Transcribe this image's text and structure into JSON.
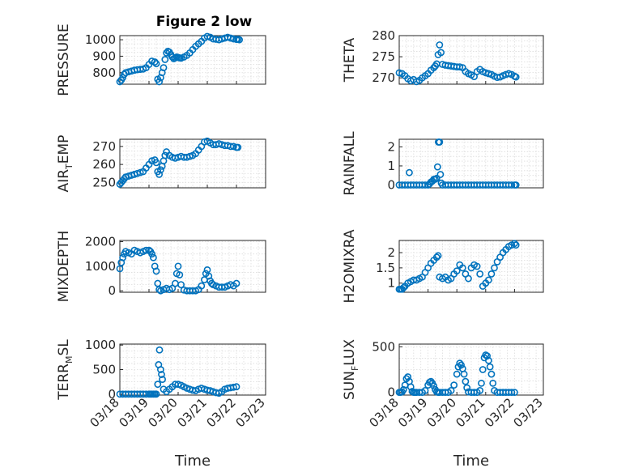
{
  "figure_title": "Figure 2 low",
  "colors": {
    "marker": "#0072BD",
    "axis": "#262626",
    "background": "#ffffff"
  },
  "chart_data": [
    {
      "type": "scatter",
      "ylabel": "PRESSURE",
      "ylim": [
        730,
        1025
      ],
      "yticks": [
        800,
        900,
        1000
      ],
      "xlim": [
        0,
        5
      ],
      "grid": true,
      "x": [
        0,
        0.05,
        0.1,
        0.15,
        0.2,
        0.3,
        0.4,
        0.5,
        0.6,
        0.7,
        0.8,
        0.9,
        1.0,
        1.1,
        1.2,
        1.25,
        1.3,
        1.35,
        1.4,
        1.45,
        1.5,
        1.55,
        1.6,
        1.65,
        1.7,
        1.75,
        1.8,
        1.85,
        1.9,
        1.95,
        2.0,
        2.05,
        2.1,
        2.2,
        2.3,
        2.4,
        2.5,
        2.6,
        2.7,
        2.8,
        2.9,
        3.0,
        3.1,
        3.2,
        3.3,
        3.4,
        3.5,
        3.6,
        3.7,
        3.8,
        3.9,
        4.0,
        4.05,
        4.1
      ],
      "y": [
        745,
        755,
        770,
        790,
        800,
        805,
        810,
        815,
        818,
        820,
        822,
        830,
        850,
        870,
        865,
        855,
        760,
        745,
        770,
        800,
        830,
        880,
        920,
        930,
        925,
        910,
        895,
        885,
        890,
        895,
        893,
        890,
        888,
        895,
        905,
        920,
        940,
        960,
        975,
        990,
        1010,
        1020,
        1015,
        1005,
        1003,
        1000,
        1005,
        1010,
        1015,
        1010,
        1005,
        1002,
        1003,
        1000
      ]
    },
    {
      "type": "scatter",
      "ylabel": "THETA",
      "ylim": [
        268.5,
        280
      ],
      "yticks": [
        270,
        275,
        280
      ],
      "xlim": [
        0,
        5
      ],
      "grid": true,
      "x": [
        0,
        0.1,
        0.2,
        0.3,
        0.4,
        0.5,
        0.6,
        0.7,
        0.8,
        0.9,
        1.0,
        1.1,
        1.2,
        1.25,
        1.3,
        1.35,
        1.4,
        1.45,
        1.5,
        1.6,
        1.7,
        1.8,
        1.9,
        2.0,
        2.1,
        2.2,
        2.3,
        2.4,
        2.5,
        2.6,
        2.7,
        2.8,
        2.9,
        3.0,
        3.1,
        3.2,
        3.3,
        3.4,
        3.5,
        3.6,
        3.7,
        3.8,
        3.9,
        4.0,
        4.05
      ],
      "y": [
        271.2,
        271.0,
        270.5,
        269.8,
        269.3,
        269.6,
        269.1,
        269.4,
        270.0,
        270.5,
        271.0,
        271.8,
        272.4,
        272.8,
        273.3,
        275.5,
        277.8,
        276.0,
        273.2,
        273.0,
        272.9,
        272.8,
        272.7,
        272.6,
        272.6,
        272.4,
        271.5,
        271.0,
        270.7,
        270.3,
        271.5,
        272.0,
        271.5,
        271.2,
        271.0,
        270.8,
        270.4,
        270.1,
        270.2,
        270.5,
        270.8,
        271.0,
        270.8,
        270.4,
        270.2
      ]
    },
    {
      "type": "scatter",
      "ylabel": "AIR_TEMP",
      "ylim": [
        247,
        274
      ],
      "yticks": [
        250,
        260,
        270
      ],
      "xlim": [
        0,
        5
      ],
      "grid": true,
      "x": [
        0,
        0.05,
        0.1,
        0.15,
        0.2,
        0.3,
        0.4,
        0.5,
        0.6,
        0.7,
        0.8,
        0.9,
        1.0,
        1.1,
        1.2,
        1.25,
        1.3,
        1.35,
        1.4,
        1.45,
        1.5,
        1.55,
        1.6,
        1.7,
        1.8,
        1.9,
        2.0,
        2.1,
        2.2,
        2.3,
        2.4,
        2.5,
        2.6,
        2.7,
        2.8,
        2.9,
        3.0,
        3.1,
        3.2,
        3.3,
        3.4,
        3.5,
        3.6,
        3.7,
        3.8,
        3.9,
        4.0,
        4.05
      ],
      "y": [
        249,
        250,
        251,
        252,
        253,
        253.5,
        254,
        254.5,
        255,
        255.5,
        256,
        258,
        260,
        262,
        262.5,
        261,
        256,
        254.5,
        257,
        259,
        262,
        265,
        267,
        265,
        264,
        263.5,
        264,
        264.5,
        264,
        264,
        264.5,
        265,
        266,
        268,
        270,
        272.5,
        273,
        272,
        271,
        271,
        271.5,
        271,
        270.5,
        270.5,
        270,
        270,
        269.5,
        269.5
      ]
    },
    {
      "type": "scatter",
      "ylabel": "RAINFALL",
      "ylim": [
        -0.15,
        2.4
      ],
      "yticks": [
        0,
        1,
        2
      ],
      "xlim": [
        0,
        5
      ],
      "grid": true,
      "x": [
        0,
        0.1,
        0.2,
        0.3,
        0.35,
        0.4,
        0.5,
        0.6,
        0.7,
        0.8,
        0.9,
        1.0,
        1.05,
        1.1,
        1.15,
        1.2,
        1.25,
        1.3,
        1.33,
        1.36,
        1.4,
        1.43,
        1.46,
        1.5,
        1.6,
        1.7,
        1.8,
        1.9,
        2.0,
        2.1,
        2.2,
        2.3,
        2.4,
        2.5,
        2.6,
        2.7,
        2.8,
        2.9,
        3.0,
        3.1,
        3.2,
        3.3,
        3.4,
        3.5,
        3.6,
        3.7,
        3.8,
        3.9,
        4.0,
        4.05
      ],
      "y": [
        0,
        0,
        0,
        0,
        0.65,
        0,
        0,
        0,
        0,
        0,
        0,
        0,
        0.05,
        0.15,
        0.2,
        0.3,
        0.3,
        0.35,
        0.95,
        2.25,
        2.25,
        0.55,
        0.1,
        0,
        0,
        0,
        0,
        0,
        0,
        0,
        0,
        0,
        0,
        0,
        0,
        0,
        0,
        0,
        0,
        0,
        0,
        0,
        0,
        0,
        0,
        0,
        0,
        0,
        0,
        0
      ]
    },
    {
      "type": "scatter",
      "ylabel": "MIXDEPTH",
      "ylim": [
        -60,
        2050
      ],
      "yticks": [
        0,
        1000,
        2000
      ],
      "xlim": [
        0,
        5
      ],
      "grid": true,
      "x": [
        0,
        0.05,
        0.1,
        0.15,
        0.2,
        0.3,
        0.4,
        0.5,
        0.6,
        0.7,
        0.8,
        0.9,
        1.0,
        1.05,
        1.1,
        1.15,
        1.2,
        1.25,
        1.3,
        1.35,
        1.4,
        1.5,
        1.6,
        1.7,
        1.8,
        1.9,
        1.95,
        2.0,
        2.05,
        2.1,
        2.2,
        2.3,
        2.4,
        2.5,
        2.6,
        2.7,
        2.8,
        2.9,
        2.95,
        3.0,
        3.05,
        3.1,
        3.15,
        3.2,
        3.3,
        3.4,
        3.5,
        3.6,
        3.7,
        3.8,
        3.9,
        4.0
      ],
      "y": [
        900,
        1150,
        1350,
        1500,
        1600,
        1550,
        1500,
        1650,
        1600,
        1550,
        1600,
        1650,
        1650,
        1600,
        1500,
        1350,
        1000,
        800,
        300,
        50,
        0,
        50,
        100,
        50,
        100,
        300,
        700,
        1000,
        650,
        250,
        30,
        0,
        0,
        0,
        0,
        50,
        200,
        450,
        700,
        850,
        600,
        400,
        300,
        250,
        200,
        150,
        150,
        150,
        200,
        250,
        200,
        300
      ]
    },
    {
      "type": "scatter",
      "ylabel": "H2OMIXRA",
      "ylim": [
        0.7,
        2.4
      ],
      "yticks": [
        1,
        1.5,
        2
      ],
      "xlim": [
        0,
        5
      ],
      "grid": true,
      "x": [
        0,
        0.05,
        0.1,
        0.15,
        0.2,
        0.3,
        0.4,
        0.5,
        0.6,
        0.7,
        0.8,
        0.9,
        1.0,
        1.1,
        1.2,
        1.3,
        1.35,
        1.4,
        1.5,
        1.6,
        1.7,
        1.8,
        1.9,
        2.0,
        2.1,
        2.2,
        2.3,
        2.4,
        2.5,
        2.6,
        2.7,
        2.8,
        2.9,
        3.0,
        3.1,
        3.2,
        3.3,
        3.4,
        3.5,
        3.6,
        3.7,
        3.8,
        3.9,
        4.0,
        4.05
      ],
      "y": [
        0.8,
        0.8,
        0.8,
        0.85,
        0.9,
        1.0,
        1.05,
        1.1,
        1.1,
        1.15,
        1.2,
        1.35,
        1.5,
        1.65,
        1.75,
        1.85,
        1.9,
        1.2,
        1.15,
        1.2,
        1.1,
        1.15,
        1.3,
        1.4,
        1.6,
        1.5,
        1.3,
        1.15,
        1.5,
        1.6,
        1.55,
        1.3,
        0.9,
        1.0,
        1.1,
        1.3,
        1.5,
        1.7,
        1.85,
        2.0,
        2.1,
        2.2,
        2.25,
        2.3,
        2.25
      ]
    },
    {
      "type": "scatter",
      "ylabel": "TERR_MSL",
      "ylim": [
        -20,
        1020
      ],
      "yticks": [
        0,
        500,
        1000
      ],
      "xlim": [
        0,
        5
      ],
      "grid": true,
      "x": [
        0,
        0.1,
        0.2,
        0.3,
        0.4,
        0.5,
        0.6,
        0.7,
        0.8,
        0.9,
        1.0,
        1.05,
        1.1,
        1.15,
        1.2,
        1.25,
        1.3,
        1.33,
        1.36,
        1.4,
        1.43,
        1.46,
        1.5,
        1.6,
        1.7,
        1.8,
        1.9,
        2.0,
        2.1,
        2.2,
        2.3,
        2.4,
        2.5,
        2.6,
        2.7,
        2.8,
        2.9,
        3.0,
        3.1,
        3.2,
        3.3,
        3.4,
        3.5,
        3.6,
        3.7,
        3.8,
        3.9,
        4.0
      ],
      "y": [
        0,
        0,
        0,
        0,
        0,
        0,
        0,
        0,
        0,
        0,
        0,
        0,
        0,
        0,
        0,
        0,
        200,
        600,
        900,
        500,
        400,
        300,
        100,
        50,
        100,
        150,
        200,
        200,
        180,
        150,
        120,
        100,
        80,
        70,
        100,
        120,
        100,
        80,
        70,
        50,
        30,
        20,
        50,
        100,
        120,
        130,
        140,
        150
      ]
    },
    {
      "type": "scatter",
      "ylabel": "SUN_FLUX",
      "ylim": [
        -30,
        530
      ],
      "yticks": [
        0,
        500
      ],
      "xlim": [
        0,
        5
      ],
      "grid": true,
      "x": [
        0,
        0.05,
        0.1,
        0.15,
        0.2,
        0.25,
        0.3,
        0.35,
        0.4,
        0.45,
        0.5,
        0.55,
        0.6,
        0.7,
        0.8,
        0.9,
        1.0,
        1.05,
        1.1,
        1.15,
        1.2,
        1.25,
        1.3,
        1.35,
        1.4,
        1.5,
        1.6,
        1.7,
        1.8,
        1.9,
        2.0,
        2.05,
        2.1,
        2.15,
        2.2,
        2.25,
        2.3,
        2.35,
        2.4,
        2.5,
        2.6,
        2.7,
        2.8,
        2.85,
        2.9,
        2.95,
        3.0,
        3.05,
        3.1,
        3.15,
        3.2,
        3.25,
        3.3,
        3.4,
        3.5,
        3.6,
        3.7,
        3.8,
        3.9,
        4.0
      ],
      "y": [
        0,
        0,
        5,
        30,
        80,
        150,
        170,
        120,
        60,
        10,
        0,
        0,
        0,
        0,
        0,
        20,
        80,
        110,
        120,
        100,
        70,
        30,
        5,
        0,
        0,
        0,
        0,
        0,
        20,
        80,
        200,
        280,
        320,
        300,
        260,
        200,
        120,
        50,
        5,
        0,
        0,
        0,
        20,
        100,
        250,
        380,
        410,
        400,
        350,
        280,
        200,
        100,
        20,
        0,
        0,
        0,
        0,
        0,
        0,
        0
      ]
    }
  ],
  "shared_x": {
    "label": "Time",
    "ticks": [
      0,
      1,
      2,
      3,
      4,
      5
    ],
    "tick_labels": [
      "03/18",
      "03/19",
      "03/20",
      "03/21",
      "03/22",
      "03/23"
    ]
  }
}
